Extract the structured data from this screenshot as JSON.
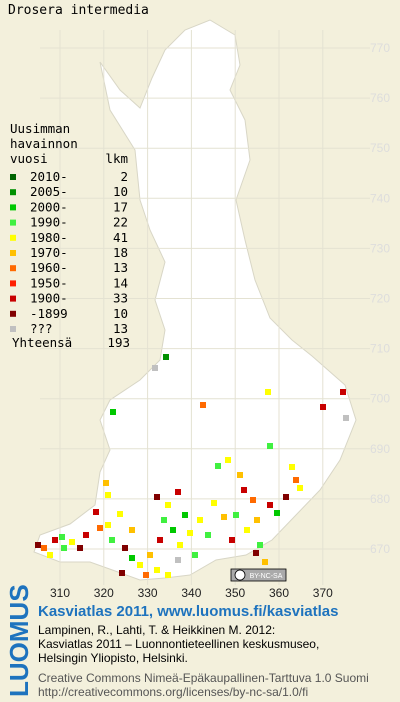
{
  "title": "Drosera intermedia",
  "legend": {
    "heading": [
      "Uusimman",
      "havainnon",
      "vuosi"
    ],
    "count_heading": "lkm",
    "rows": [
      {
        "label": "2010-",
        "count": 2,
        "color": "#006400"
      },
      {
        "label": "2005-",
        "count": 10,
        "color": "#009000"
      },
      {
        "label": "2000-",
        "count": 17,
        "color": "#00c800"
      },
      {
        "label": "1990-",
        "count": 22,
        "color": "#40f040"
      },
      {
        "label": "1980-",
        "count": 41,
        "color": "#ffff00"
      },
      {
        "label": "1970-",
        "count": 18,
        "color": "#ffc000"
      },
      {
        "label": "1960-",
        "count": 13,
        "color": "#ff6a00"
      },
      {
        "label": "1950-",
        "count": 14,
        "color": "#ff2000"
      },
      {
        "label": "1900-",
        "count": 33,
        "color": "#c80000"
      },
      {
        "label": "-1899",
        "count": 10,
        "color": "#800000"
      },
      {
        "label": "???",
        "count": 13,
        "color": "#c0c0c0"
      }
    ],
    "total_label": "Yhteensä",
    "total": 193
  },
  "grid": {
    "x_labels": [
      310,
      320,
      330,
      340,
      350,
      360,
      370
    ],
    "y_labels": [
      770,
      760,
      750,
      740,
      730,
      720,
      710,
      700,
      690,
      680,
      670
    ]
  },
  "badge": "BY-NC-SA",
  "footer": {
    "brand": "LUOMUS",
    "heading": "Kasviatlas 2011, www.luomus.fi/kasviatlas",
    "citation": [
      "Lampinen, R., Lahti, T. & Heikkinen M. 2012:",
      "Kasviatlas 2011 – Luonnontieteellinen keskusmuseo,",
      "Helsingin Yliopisto, Helsinki."
    ],
    "license": [
      "Creative Commons Nimeä-Epäkaupallinen-Tarttuva 1.0 Suomi",
      "http://creativecommons.org/licenses/by-nc-sa/1.0/fi"
    ]
  }
}
